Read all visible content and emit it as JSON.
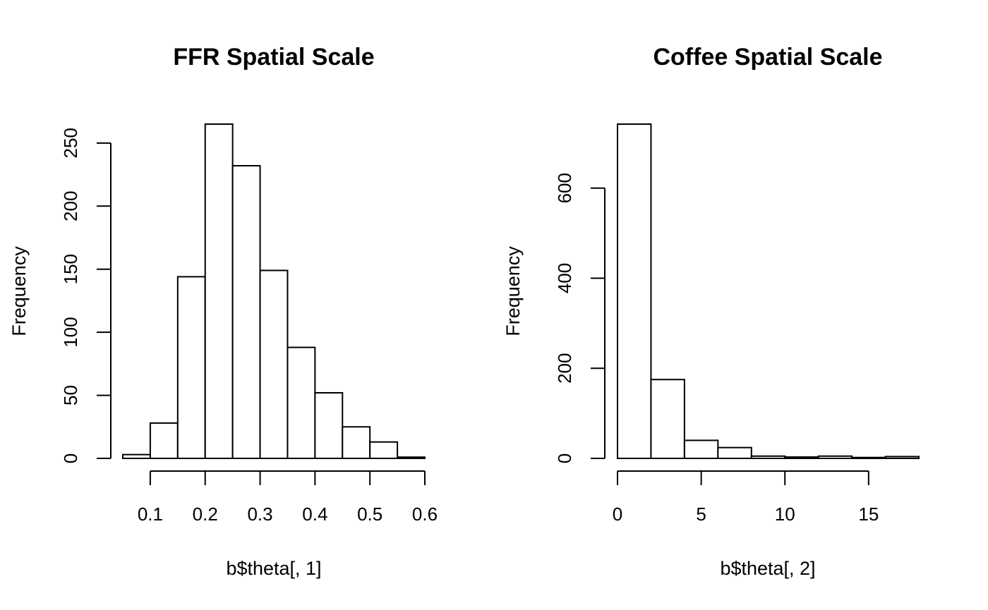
{
  "chart_data": [
    {
      "type": "bar",
      "title": "FFR Spatial Scale",
      "xlabel": "b$theta[, 1]",
      "ylabel": "Frequency",
      "bins": [
        {
          "x0": 0.05,
          "x1": 0.1,
          "count": 3
        },
        {
          "x0": 0.1,
          "x1": 0.15,
          "count": 28
        },
        {
          "x0": 0.15,
          "x1": 0.2,
          "count": 144
        },
        {
          "x0": 0.2,
          "x1": 0.25,
          "count": 265
        },
        {
          "x0": 0.25,
          "x1": 0.3,
          "count": 232
        },
        {
          "x0": 0.3,
          "x1": 0.35,
          "count": 149
        },
        {
          "x0": 0.35,
          "x1": 0.4,
          "count": 88
        },
        {
          "x0": 0.4,
          "x1": 0.45,
          "count": 52
        },
        {
          "x0": 0.45,
          "x1": 0.5,
          "count": 25
        },
        {
          "x0": 0.5,
          "x1": 0.55,
          "count": 13
        },
        {
          "x0": 0.55,
          "x1": 0.6,
          "count": 1
        }
      ],
      "xlim": [
        0.05,
        0.6
      ],
      "ylim": [
        0,
        265
      ],
      "xticks": [
        0.1,
        0.2,
        0.3,
        0.4,
        0.5,
        0.6
      ],
      "xtick_labels": [
        "0.1",
        "0.2",
        "0.3",
        "0.4",
        "0.5",
        "0.6"
      ],
      "yticks": [
        0,
        50,
        100,
        150,
        200,
        250
      ],
      "ytick_labels": [
        "0",
        "50",
        "100",
        "150",
        "200",
        "250"
      ],
      "grid": false
    },
    {
      "type": "bar",
      "title": "Coffee Spatial Scale",
      "xlabel": "b$theta[, 2]",
      "ylabel": "Frequency",
      "bins": [
        {
          "x0": 0,
          "x1": 2,
          "count": 742
        },
        {
          "x0": 2,
          "x1": 4,
          "count": 175
        },
        {
          "x0": 4,
          "x1": 6,
          "count": 40
        },
        {
          "x0": 6,
          "x1": 8,
          "count": 24
        },
        {
          "x0": 8,
          "x1": 10,
          "count": 5
        },
        {
          "x0": 10,
          "x1": 12,
          "count": 3
        },
        {
          "x0": 12,
          "x1": 14,
          "count": 5
        },
        {
          "x0": 14,
          "x1": 16,
          "count": 2
        },
        {
          "x0": 16,
          "x1": 18,
          "count": 4
        }
      ],
      "xlim": [
        0,
        18
      ],
      "ylim": [
        0,
        742
      ],
      "xticks": [
        0,
        5,
        10,
        15
      ],
      "xtick_labels": [
        "0",
        "5",
        "10",
        "15"
      ],
      "yticks": [
        0,
        200,
        400,
        600
      ],
      "ytick_labels": [
        "0",
        "200",
        "400",
        "600"
      ],
      "grid": false
    }
  ]
}
